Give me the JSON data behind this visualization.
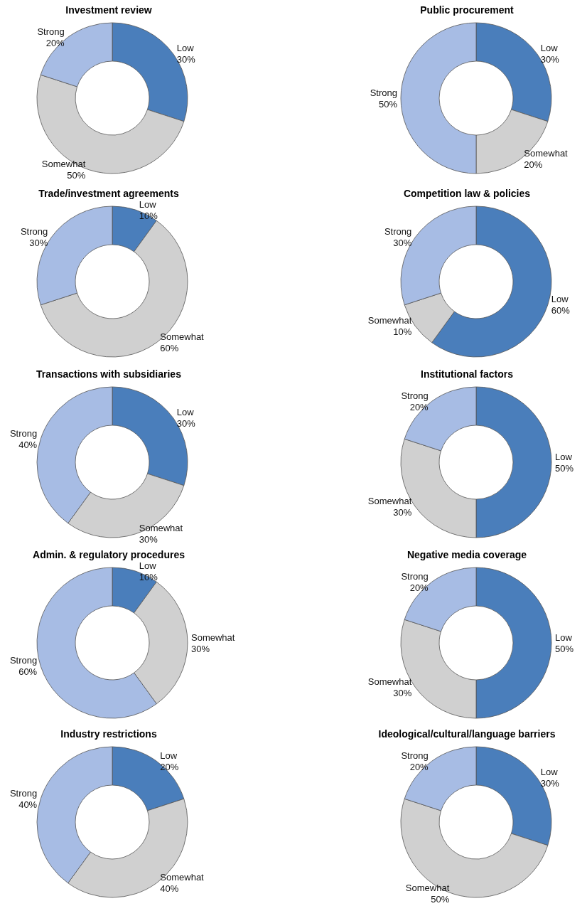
{
  "chart_data": [
    {
      "type": "donut",
      "title": "Investment review",
      "categories": [
        "Low",
        "Somewhat",
        "Strong"
      ],
      "values": [
        30,
        50,
        20
      ],
      "value_labels": [
        "30%",
        "50%",
        "20%"
      ],
      "colors": [
        "#4a7ebb",
        "#d0d0d0",
        "#a7bce4"
      ]
    },
    {
      "type": "donut",
      "title": "Public procurement",
      "categories": [
        "Low",
        "Somewhat",
        "Strong"
      ],
      "values": [
        30,
        20,
        50
      ],
      "value_labels": [
        "30%",
        "20%",
        "50%"
      ],
      "colors": [
        "#4a7ebb",
        "#d0d0d0",
        "#a7bce4"
      ]
    },
    {
      "type": "donut",
      "title": "Trade/investment agreements",
      "categories": [
        "Low",
        "Somewhat",
        "Strong"
      ],
      "values": [
        10,
        60,
        30
      ],
      "value_labels": [
        "10%",
        "60%",
        "30%"
      ],
      "colors": [
        "#4a7ebb",
        "#d0d0d0",
        "#a7bce4"
      ]
    },
    {
      "type": "donut",
      "title": "Competition law & policies",
      "categories": [
        "Low",
        "Somewhat",
        "Strong"
      ],
      "values": [
        60,
        10,
        30
      ],
      "value_labels": [
        "60%",
        "10%",
        "30%"
      ],
      "colors": [
        "#4a7ebb",
        "#d0d0d0",
        "#a7bce4"
      ]
    },
    {
      "type": "donut",
      "title": "Transactions with subsidiaries",
      "categories": [
        "Low",
        "Somewhat",
        "Strong"
      ],
      "values": [
        30,
        30,
        40
      ],
      "value_labels": [
        "30%",
        "30%",
        "40%"
      ],
      "colors": [
        "#4a7ebb",
        "#d0d0d0",
        "#a7bce4"
      ]
    },
    {
      "type": "donut",
      "title": "Institutional factors",
      "categories": [
        "Low",
        "Somewhat",
        "Strong"
      ],
      "values": [
        50,
        30,
        20
      ],
      "value_labels": [
        "50%",
        "30%",
        "20%"
      ],
      "colors": [
        "#4a7ebb",
        "#d0d0d0",
        "#a7bce4"
      ]
    },
    {
      "type": "donut",
      "title": "Admin. & regulatory procedures",
      "categories": [
        "Low",
        "Somewhat",
        "Strong"
      ],
      "values": [
        10,
        30,
        60
      ],
      "value_labels": [
        "10%",
        "30%",
        "60%"
      ],
      "colors": [
        "#4a7ebb",
        "#d0d0d0",
        "#a7bce4"
      ]
    },
    {
      "type": "donut",
      "title": "Negative media coverage",
      "categories": [
        "Low",
        "Somewhat",
        "Strong"
      ],
      "values": [
        50,
        30,
        20
      ],
      "value_labels": [
        "50%",
        "30%",
        "20%"
      ],
      "colors": [
        "#4a7ebb",
        "#d0d0d0",
        "#a7bce4"
      ]
    },
    {
      "type": "donut",
      "title": "Industry restrictions",
      "categories": [
        "Low",
        "Somewhat",
        "Strong"
      ],
      "values": [
        20,
        40,
        40
      ],
      "value_labels": [
        "20%",
        "40%",
        "40%"
      ],
      "colors": [
        "#4a7ebb",
        "#d0d0d0",
        "#a7bce4"
      ]
    },
    {
      "type": "donut",
      "title": "Ideological/cultural/language barriers",
      "categories": [
        "Low",
        "Somewhat",
        "Strong"
      ],
      "values": [
        30,
        50,
        20
      ],
      "value_labels": [
        "30%",
        "50%",
        "20%"
      ],
      "colors": [
        "#4a7ebb",
        "#d0d0d0",
        "#a7bce4"
      ]
    }
  ]
}
